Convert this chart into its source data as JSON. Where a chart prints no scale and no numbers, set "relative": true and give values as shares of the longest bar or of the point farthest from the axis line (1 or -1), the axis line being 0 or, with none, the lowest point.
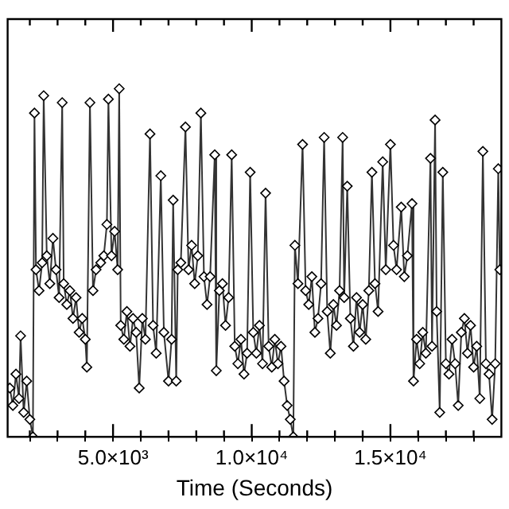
{
  "chart_data": {
    "type": "line",
    "xlabel": "Time (Seconds)",
    "relative": true,
    "marker": "diamond",
    "line_style": "solid",
    "xlim": [
      1200,
      19000
    ],
    "xticks": [
      {
        "value": 2000,
        "label": null
      },
      {
        "value": 3000,
        "label": null
      },
      {
        "value": 4000,
        "label": null
      },
      {
        "value": 5000,
        "label": "5.0×10³"
      },
      {
        "value": 6000,
        "label": null
      },
      {
        "value": 7000,
        "label": null
      },
      {
        "value": 8000,
        "label": null
      },
      {
        "value": 9000,
        "label": null
      },
      {
        "value": 10000,
        "label": "1.0×10⁴"
      },
      {
        "value": 11000,
        "label": null
      },
      {
        "value": 12000,
        "label": null
      },
      {
        "value": 13000,
        "label": null
      },
      {
        "value": 14000,
        "label": null
      },
      {
        "value": 15000,
        "label": "1.5×10⁴"
      },
      {
        "value": 16000,
        "label": null
      },
      {
        "value": 17000,
        "label": null
      },
      {
        "value": 18000,
        "label": null
      }
    ],
    "x": [
      1278,
      1389,
      1500,
      1611,
      1667,
      1778,
      1889,
      2000,
      2111,
      2167,
      2222,
      2333,
      2444,
      2500,
      2611,
      2722,
      2833,
      2944,
      3056,
      3167,
      3222,
      3333,
      3444,
      3556,
      3667,
      3778,
      3889,
      4000,
      4056,
      4167,
      4278,
      4389,
      4556,
      4667,
      4778,
      4833,
      4944,
      5056,
      5167,
      5222,
      5278,
      5389,
      5500,
      5611,
      5722,
      5833,
      5944,
      6056,
      6167,
      6333,
      6444,
      6556,
      6722,
      6833,
      7000,
      7111,
      7167,
      7278,
      7333,
      7444,
      7611,
      7722,
      7833,
      7944,
      8056,
      8167,
      8278,
      8389,
      8500,
      8667,
      8722,
      8833,
      8944,
      9056,
      9167,
      9278,
      9389,
      9500,
      9611,
      9722,
      9833,
      9944,
      10056,
      10167,
      10278,
      10389,
      10500,
      10611,
      10722,
      10833,
      10944,
      11056,
      11167,
      11278,
      11389,
      11500,
      11556,
      11667,
      11833,
      11944,
      12056,
      12167,
      12278,
      12389,
      12500,
      12611,
      12722,
      12833,
      12944,
      13056,
      13167,
      13278,
      13333,
      13444,
      13556,
      13667,
      13778,
      13889,
      14000,
      14111,
      14222,
      14333,
      14444,
      14556,
      14722,
      14833,
      15000,
      15111,
      15222,
      15389,
      15500,
      15611,
      15778,
      15833,
      15944,
      16056,
      16167,
      16278,
      16444,
      16500,
      16611,
      16667,
      16778,
      16889,
      17000,
      17111,
      17222,
      17333,
      17444,
      17556,
      17667,
      17778,
      17889,
      18000,
      18111,
      18222,
      18333,
      18444,
      18556,
      18667,
      18778,
      18889,
      18944
    ],
    "series": [
      {
        "color": "#333333",
        "values": [
          0.14,
          0.09,
          0.18,
          0.11,
          0.29,
          0.07,
          0.16,
          0.05,
          0.0,
          0.93,
          0.48,
          0.42,
          0.5,
          0.98,
          0.52,
          0.44,
          0.57,
          0.48,
          0.4,
          0.96,
          0.44,
          0.38,
          0.42,
          0.34,
          0.4,
          0.3,
          0.34,
          0.28,
          0.2,
          0.96,
          0.42,
          0.48,
          0.5,
          0.52,
          0.61,
          0.97,
          0.52,
          0.59,
          0.48,
          1.0,
          0.32,
          0.28,
          0.36,
          0.26,
          0.34,
          0.3,
          0.14,
          0.34,
          0.28,
          0.87,
          0.32,
          0.24,
          0.75,
          0.3,
          0.16,
          0.28,
          0.68,
          0.16,
          0.48,
          0.5,
          0.89,
          0.48,
          0.55,
          0.44,
          0.52,
          0.93,
          0.46,
          0.38,
          0.46,
          0.81,
          0.19,
          0.42,
          0.44,
          0.32,
          0.4,
          0.81,
          0.26,
          0.21,
          0.28,
          0.18,
          0.24,
          0.76,
          0.3,
          0.24,
          0.32,
          0.21,
          0.7,
          0.26,
          0.2,
          0.28,
          0.21,
          0.26,
          0.16,
          0.09,
          0.05,
          0.0,
          0.55,
          0.44,
          0.84,
          0.42,
          0.38,
          0.46,
          0.3,
          0.34,
          0.44,
          0.86,
          0.36,
          0.24,
          0.38,
          0.32,
          0.42,
          0.86,
          0.4,
          0.72,
          0.34,
          0.26,
          0.4,
          0.3,
          0.38,
          0.28,
          0.42,
          0.76,
          0.44,
          0.36,
          0.79,
          0.48,
          0.84,
          0.55,
          0.48,
          0.66,
          0.46,
          0.52,
          0.67,
          0.16,
          0.28,
          0.21,
          0.3,
          0.24,
          0.8,
          0.26,
          0.91,
          0.36,
          0.07,
          0.76,
          0.21,
          0.18,
          0.28,
          0.21,
          0.09,
          0.3,
          0.34,
          0.24,
          0.32,
          0.2,
          0.26,
          0.11,
          0.82,
          0.21,
          0.18,
          0.05,
          0.21,
          0.77,
          0.48
        ]
      }
    ]
  }
}
